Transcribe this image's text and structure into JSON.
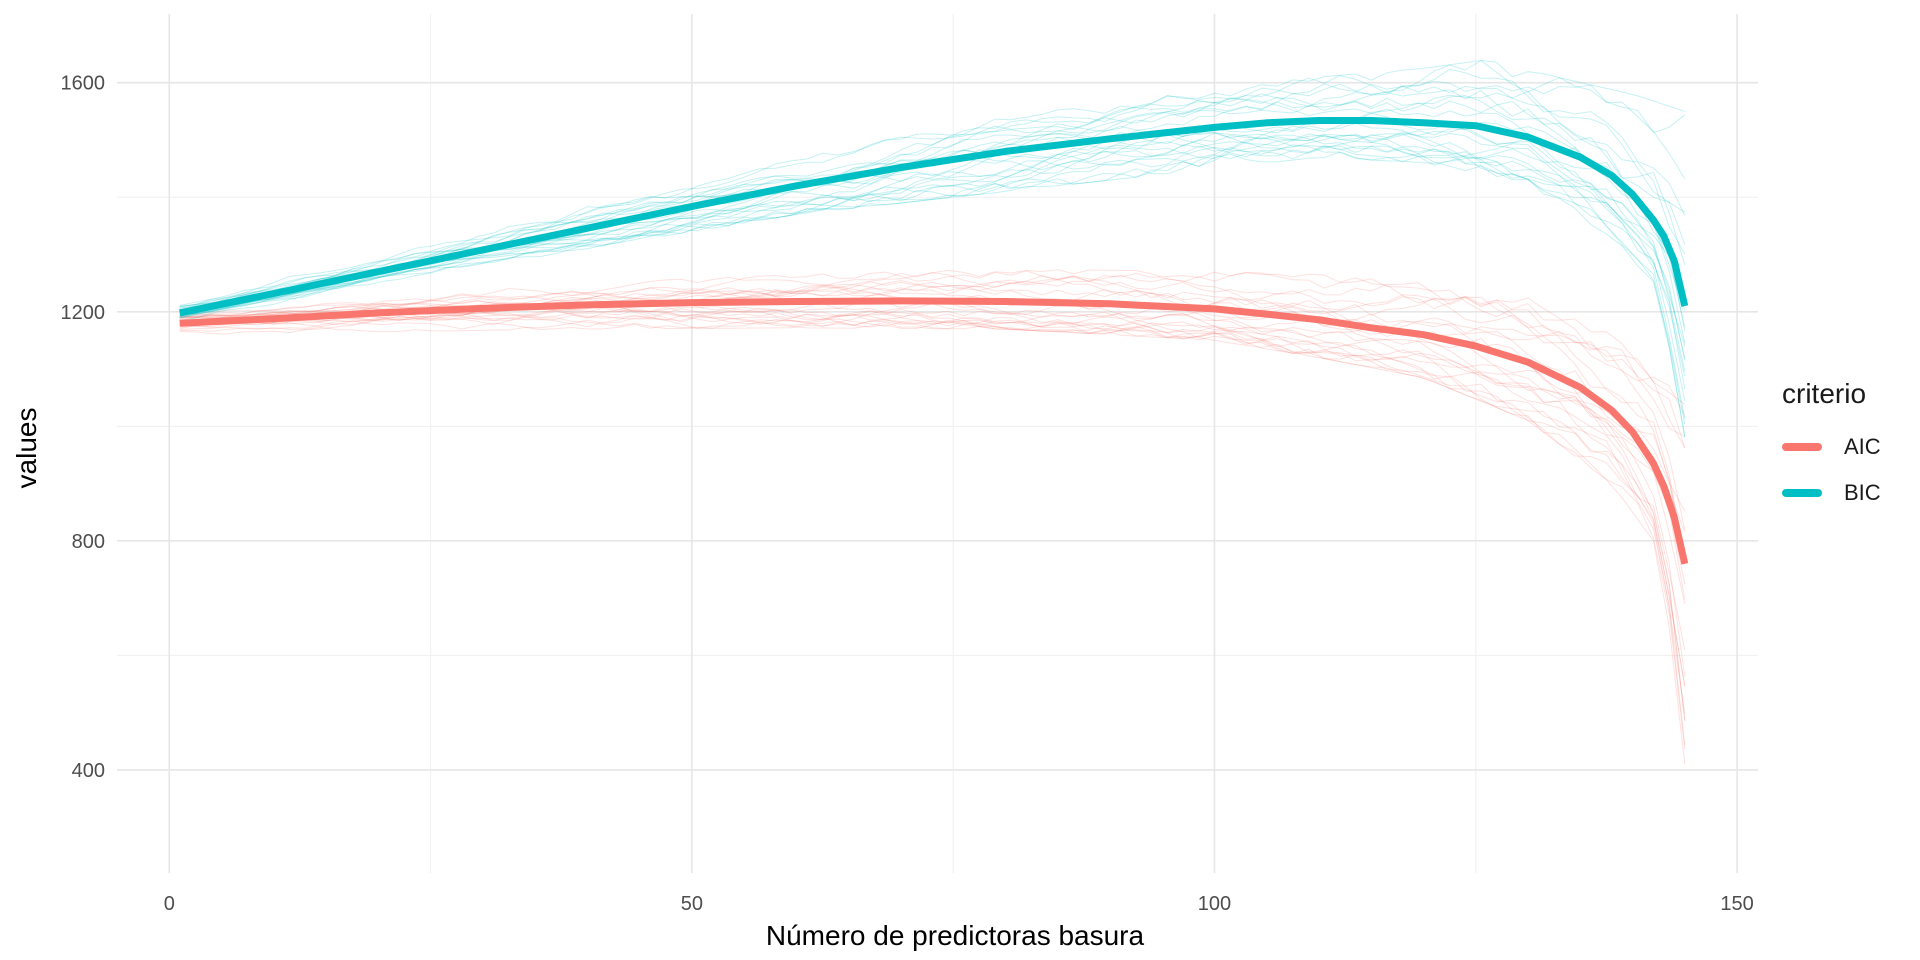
{
  "chart_data": {
    "type": "line",
    "title": "",
    "xlabel": "Número de predictoras basura",
    "ylabel": "values",
    "xlim": [
      -5,
      152
    ],
    "ylim": [
      220,
      1720
    ],
    "x_ticks": [
      0,
      50,
      100,
      150
    ],
    "y_ticks": [
      400,
      800,
      1200,
      1600
    ],
    "grid": true,
    "legend": {
      "title": "criterio",
      "position": "right"
    },
    "series": [
      {
        "name": "AIC",
        "color": "#F8766D",
        "points": [
          [
            1,
            1180
          ],
          [
            10,
            1188
          ],
          [
            20,
            1198
          ],
          [
            30,
            1206
          ],
          [
            40,
            1212
          ],
          [
            50,
            1216
          ],
          [
            60,
            1218
          ],
          [
            70,
            1219
          ],
          [
            80,
            1218
          ],
          [
            90,
            1214
          ],
          [
            100,
            1205
          ],
          [
            105,
            1196
          ],
          [
            110,
            1186
          ],
          [
            115,
            1172
          ],
          [
            120,
            1160
          ],
          [
            125,
            1140
          ],
          [
            130,
            1112
          ],
          [
            135,
            1068
          ],
          [
            138,
            1028
          ],
          [
            140,
            990
          ],
          [
            142,
            935
          ],
          [
            143,
            895
          ],
          [
            144,
            840
          ],
          [
            145,
            760
          ]
        ],
        "band_top": [
          [
            1,
            1200
          ],
          [
            20,
            1225
          ],
          [
            40,
            1250
          ],
          [
            60,
            1265
          ],
          [
            80,
            1275
          ],
          [
            100,
            1270
          ],
          [
            110,
            1265
          ],
          [
            120,
            1250
          ],
          [
            130,
            1230
          ],
          [
            138,
            1180
          ],
          [
            142,
            1130
          ],
          [
            145,
            1060
          ]
        ],
        "band_bottom": [
          [
            1,
            1160
          ],
          [
            20,
            1165
          ],
          [
            40,
            1170
          ],
          [
            60,
            1172
          ],
          [
            80,
            1170
          ],
          [
            100,
            1150
          ],
          [
            110,
            1120
          ],
          [
            120,
            1085
          ],
          [
            130,
            1010
          ],
          [
            138,
            900
          ],
          [
            142,
            800
          ],
          [
            144,
            600
          ],
          [
            145,
            410
          ]
        ]
      },
      {
        "name": "BIC",
        "color": "#00BFC4",
        "points": [
          [
            1,
            1198
          ],
          [
            10,
            1232
          ],
          [
            20,
            1270
          ],
          [
            30,
            1308
          ],
          [
            40,
            1346
          ],
          [
            50,
            1384
          ],
          [
            60,
            1420
          ],
          [
            70,
            1452
          ],
          [
            80,
            1480
          ],
          [
            90,
            1502
          ],
          [
            100,
            1522
          ],
          [
            105,
            1530
          ],
          [
            110,
            1534
          ],
          [
            115,
            1534
          ],
          [
            120,
            1530
          ],
          [
            125,
            1525
          ],
          [
            130,
            1505
          ],
          [
            135,
            1470
          ],
          [
            138,
            1438
          ],
          [
            140,
            1405
          ],
          [
            142,
            1360
          ],
          [
            143,
            1332
          ],
          [
            144,
            1288
          ],
          [
            145,
            1210
          ]
        ],
        "band_top": [
          [
            1,
            1218
          ],
          [
            20,
            1300
          ],
          [
            40,
            1390
          ],
          [
            60,
            1470
          ],
          [
            80,
            1540
          ],
          [
            100,
            1590
          ],
          [
            110,
            1610
          ],
          [
            120,
            1625
          ],
          [
            126,
            1640
          ],
          [
            135,
            1600
          ],
          [
            140,
            1580
          ],
          [
            145,
            1550
          ]
        ],
        "band_bottom": [
          [
            1,
            1180
          ],
          [
            20,
            1250
          ],
          [
            40,
            1310
          ],
          [
            60,
            1370
          ],
          [
            80,
            1410
          ],
          [
            100,
            1450
          ],
          [
            110,
            1470
          ],
          [
            120,
            1460
          ],
          [
            130,
            1420
          ],
          [
            138,
            1330
          ],
          [
            142,
            1250
          ],
          [
            144,
            1100
          ],
          [
            145,
            980
          ]
        ]
      }
    ]
  }
}
